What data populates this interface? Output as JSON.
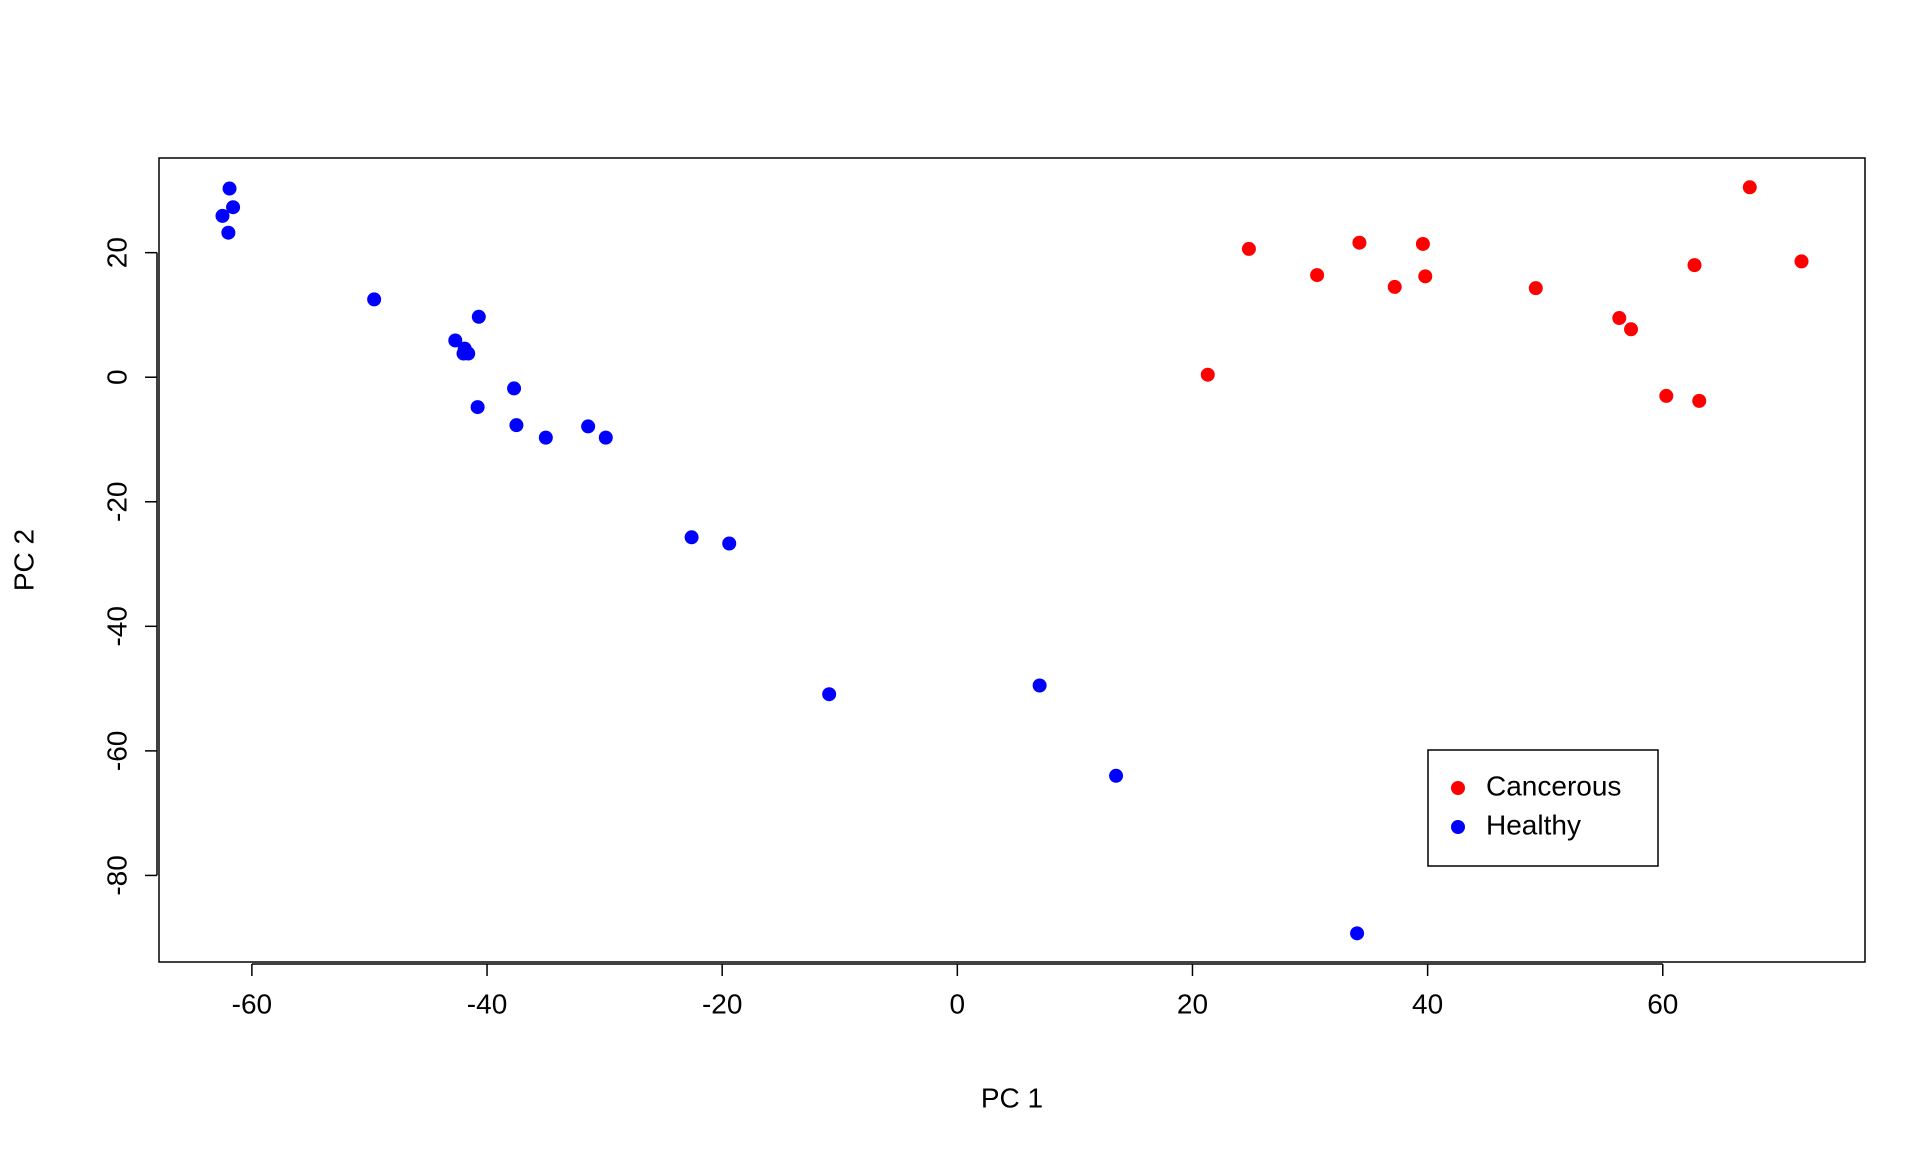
{
  "chart_data": {
    "type": "scatter",
    "xlabel": "PC 1",
    "ylabel": "PC 2",
    "xlim": [
      -67.9,
      77.2
    ],
    "ylim": [
      -93.9,
      35.2
    ],
    "xticks": [
      -60,
      -40,
      -20,
      0,
      20,
      40,
      60
    ],
    "yticks": [
      -80,
      -60,
      -40,
      -20,
      0,
      20
    ],
    "legend": "bottom right",
    "series": [
      {
        "name": "Cancerous",
        "color": "#ff0000",
        "x": [
          21.3,
          24.8,
          30.6,
          34.2,
          37.2,
          39.6,
          39.8,
          49.2,
          56.3,
          57.3,
          60.3,
          63.1,
          62.7,
          67.4,
          71.8
        ],
        "values": [
          0.4,
          20.6,
          16.4,
          21.6,
          14.5,
          21.4,
          16.2,
          14.3,
          9.5,
          7.7,
          -3.0,
          -3.8,
          18.0,
          30.5,
          18.6
        ]
      },
      {
        "name": "Healthy",
        "color": "#0000ff",
        "x": [
          -61.9,
          -61.6,
          -62.5,
          -62.0,
          -49.6,
          -40.7,
          -42.7,
          -41.9,
          -41.6,
          -42.0,
          -37.7,
          -40.8,
          -37.5,
          -35.0,
          -31.4,
          -29.9,
          -22.6,
          -19.4,
          -10.9,
          7.0,
          13.5,
          34.0
        ],
        "values": [
          30.3,
          27.3,
          25.9,
          23.2,
          12.5,
          9.7,
          5.9,
          4.6,
          3.8,
          3.8,
          -1.8,
          -4.8,
          -7.7,
          -9.7,
          -7.9,
          -9.7,
          -25.7,
          -26.7,
          -50.9,
          -49.5,
          -64.0,
          -89.3
        ]
      }
    ]
  }
}
